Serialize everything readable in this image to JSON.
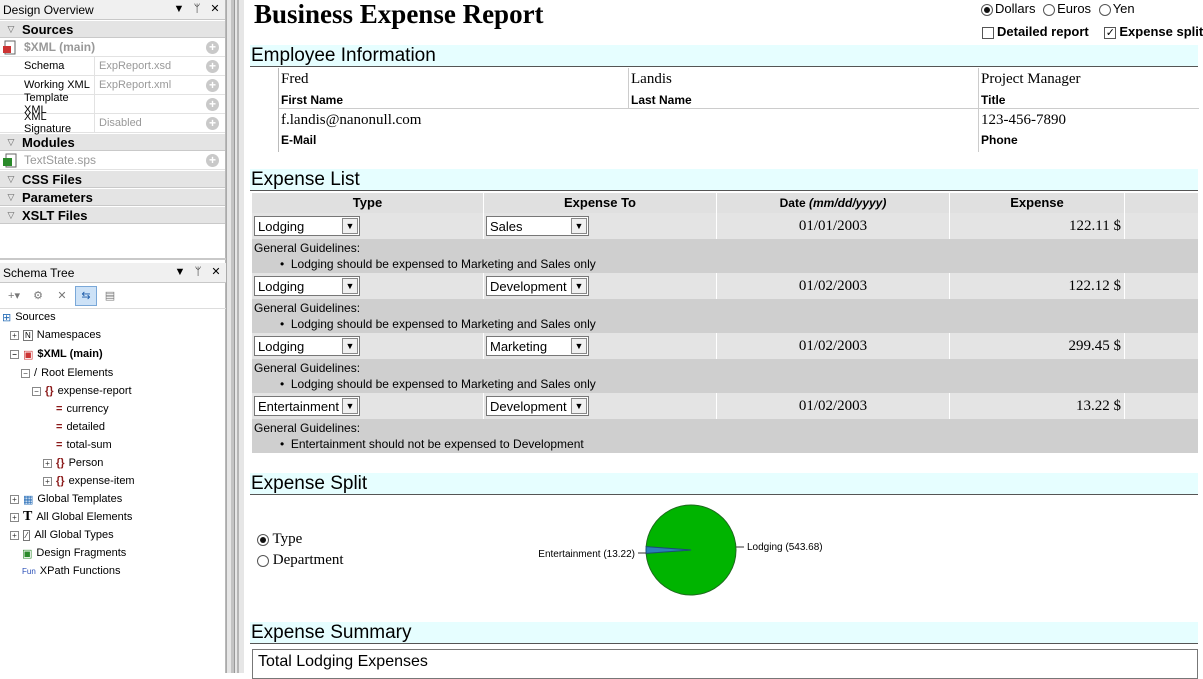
{
  "design_overview": {
    "title": "Design Overview",
    "sources_label": "Sources",
    "main_source": "$XML (main)",
    "rows": [
      {
        "key": "Schema",
        "value": "ExpReport.xsd"
      },
      {
        "key": "Working XML",
        "value": "ExpReport.xml"
      },
      {
        "key": "Template XML",
        "value": ""
      },
      {
        "key": "XML Signature",
        "value": "Disabled"
      }
    ],
    "modules_label": "Modules",
    "module_file": "TextState.sps",
    "css_label": "CSS Files",
    "params_label": "Parameters",
    "xslt_label": "XSLT Files"
  },
  "schema_tree": {
    "title": "Schema Tree",
    "nodes": {
      "sources": "Sources",
      "namespaces": "Namespaces",
      "xml_main": "$XML (main)",
      "root_elements": "Root Elements",
      "expense_report": "expense-report",
      "currency": "currency",
      "detailed": "detailed",
      "total_sum": "total-sum",
      "person": "Person",
      "expense_item": "expense-item",
      "global_templates": "Global Templates",
      "all_global_elements": "All Global Elements",
      "all_global_types": "All Global Types",
      "design_fragments": "Design Fragments",
      "xpath_functions": "XPath Functions"
    }
  },
  "report": {
    "title": "Business Expense Report",
    "currency_options": [
      "Dollars",
      "Euros",
      "Yen"
    ],
    "currency_selected": "Dollars",
    "detailed_label": "Detailed report",
    "split_label": "Expense split",
    "employee_section": "Employee Information",
    "employee": {
      "first": "Fred",
      "last": "Landis",
      "title": "Project Manager",
      "first_label": "First Name",
      "last_label": "Last Name",
      "title_label": "Title",
      "email": "f.landis@nanonull.com",
      "phone": "123-456-7890",
      "email_label": "E-Mail",
      "phone_label": "Phone"
    },
    "expense_section": "Expense List",
    "columns": {
      "type": "Type",
      "to": "Expense To",
      "date_prefix": "Date ",
      "date_fmt": "(mm/dd/yyyy)",
      "expense": "Expense"
    },
    "guidelines_label": "General Guidelines:",
    "items": [
      {
        "type": "Lodging",
        "to": "Sales",
        "date": "01/01/2003",
        "amount": "122.11 $",
        "guideline": "Lodging should be expensed to Marketing and Sales only"
      },
      {
        "type": "Lodging",
        "to": "Development",
        "date": "01/02/2003",
        "amount": "122.12 $",
        "guideline": "Lodging should be expensed to Marketing and Sales only"
      },
      {
        "type": "Lodging",
        "to": "Marketing",
        "date": "01/02/2003",
        "amount": "299.45 $",
        "guideline": "Lodging should be expensed to Marketing and Sales only"
      },
      {
        "type": "Entertainment",
        "to": "Development",
        "date": "01/02/2003",
        "amount": "13.22 $",
        "guideline": "Entertainment should not be expensed to Development"
      }
    ],
    "split_section": "Expense Split",
    "split_options": [
      "Type",
      "Department"
    ],
    "split_selected": "Type",
    "summary_section": "Expense Summary",
    "summary_first": "Total Lodging Expenses"
  },
  "chart_data": {
    "type": "pie",
    "categories": [
      "Lodging",
      "Entertainment"
    ],
    "values": [
      543.68,
      13.22
    ],
    "labels": [
      "Lodging (543.68)",
      "Entertainment (13.22)"
    ],
    "colors": [
      "#00b400",
      "#2a7fb8"
    ]
  }
}
